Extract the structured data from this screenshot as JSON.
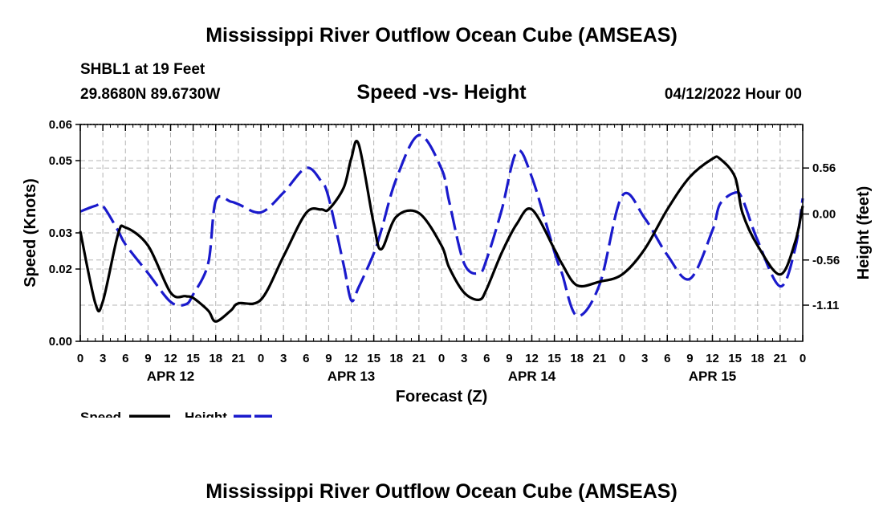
{
  "header": {
    "title": "Mississippi River Outflow Ocean Cube (AMSEAS)",
    "station": "SHBL1 at 19 Feet",
    "coords": "29.8680N  89.6730W",
    "subtitle": "Speed -vs- Height",
    "datetime": "04/12/2022 Hour 00"
  },
  "footer": {
    "title": "Mississippi River Outflow Ocean Cube (AMSEAS)"
  },
  "colors": {
    "speed": "#000000",
    "height": "#1a1acc",
    "grid": "#b4b4b4"
  },
  "chart_data": {
    "type": "line",
    "title": "Speed -vs- Height",
    "xlabel": "Forecast (Z)",
    "ylabel": "Speed (Knots)",
    "y2label": "Height (feet)",
    "xlim": [
      0,
      96
    ],
    "ylim": [
      0,
      0.06
    ],
    "y2lim": [
      -1.55,
      1.09
    ],
    "x_tick_labels": [
      "0",
      "3",
      "6",
      "9",
      "12",
      "15",
      "18",
      "21",
      "0",
      "3",
      "6",
      "9",
      "12",
      "15",
      "18",
      "21",
      "0",
      "3",
      "6",
      "9",
      "12",
      "15",
      "18",
      "21",
      "0",
      "3",
      "6",
      "9",
      "12",
      "15",
      "18",
      "21",
      "0"
    ],
    "y_ticks": [
      0.0,
      0.02,
      0.03,
      0.05,
      0.06
    ],
    "y_tick_labels": [
      "0.00",
      "0.02",
      "0.03",
      "0.05",
      "0.06"
    ],
    "y2_ticks": [
      0.56,
      0.0,
      -0.56,
      -1.11
    ],
    "y2_tick_labels": [
      "0.56",
      "0.00",
      "-0.56",
      "-1.11"
    ],
    "day_labels": [
      {
        "x": 12,
        "label": "APR 12"
      },
      {
        "x": 36,
        "label": "APR 13"
      },
      {
        "x": 60,
        "label": "APR 14"
      },
      {
        "x": 84,
        "label": "APR 15"
      }
    ],
    "series": [
      {
        "name": "Speed",
        "axis": "left",
        "style": "solid",
        "x": [
          0,
          2,
          3,
          5,
          6,
          9,
          12,
          14,
          15,
          17,
          18,
          20,
          21,
          24,
          27,
          30,
          32,
          33,
          35,
          36,
          37,
          39,
          40,
          42,
          45,
          48,
          49,
          51,
          53,
          54,
          56,
          58,
          60,
          63,
          64,
          66,
          69,
          72,
          75,
          78,
          81,
          84,
          85,
          87,
          88,
          90,
          93,
          95,
          96
        ],
        "values": [
          0.0305,
          0.0105,
          0.011,
          0.0295,
          0.0315,
          0.0265,
          0.0135,
          0.0125,
          0.012,
          0.0085,
          0.0055,
          0.0085,
          0.0105,
          0.0115,
          0.0235,
          0.0355,
          0.0365,
          0.0365,
          0.0425,
          0.0505,
          0.0545,
          0.0325,
          0.0255,
          0.0345,
          0.0355,
          0.0265,
          0.0205,
          0.0135,
          0.0115,
          0.0145,
          0.0245,
          0.0325,
          0.0365,
          0.0255,
          0.0215,
          0.0155,
          0.0165,
          0.0185,
          0.0255,
          0.0365,
          0.0455,
          0.0505,
          0.0505,
          0.0455,
          0.0355,
          0.0265,
          0.0185,
          0.0275,
          0.0375
        ]
      },
      {
        "name": "Height",
        "axis": "right",
        "style": "dashed",
        "x": [
          0,
          2,
          3,
          5,
          6,
          9,
          12,
          14,
          15,
          17,
          18,
          20,
          21,
          24,
          27,
          30,
          32,
          33,
          35,
          36,
          37,
          39,
          40,
          42,
          45,
          48,
          49,
          51,
          53,
          54,
          56,
          58,
          60,
          63,
          64,
          66,
          69,
          72,
          75,
          78,
          81,
          84,
          85,
          87,
          88,
          90,
          93,
          95,
          96
        ],
        "values": [
          0.03,
          0.1,
          0.1,
          -0.2,
          -0.37,
          -0.72,
          -1.07,
          -1.1,
          -0.98,
          -0.6,
          0.16,
          0.15,
          0.12,
          0.02,
          0.26,
          0.56,
          0.4,
          0.2,
          -0.62,
          -1.05,
          -0.89,
          -0.48,
          -0.2,
          0.43,
          0.96,
          0.55,
          0.16,
          -0.6,
          -0.72,
          -0.55,
          0.05,
          0.76,
          0.45,
          -0.46,
          -0.72,
          -1.24,
          -0.86,
          0.22,
          -0.05,
          -0.5,
          -0.79,
          -0.2,
          0.12,
          0.26,
          0.18,
          -0.32,
          -0.88,
          -0.42,
          0.19
        ]
      }
    ],
    "legend": [
      {
        "label": "Speed",
        "style": "solid"
      },
      {
        "label": "Height",
        "style": "dashed"
      }
    ]
  }
}
